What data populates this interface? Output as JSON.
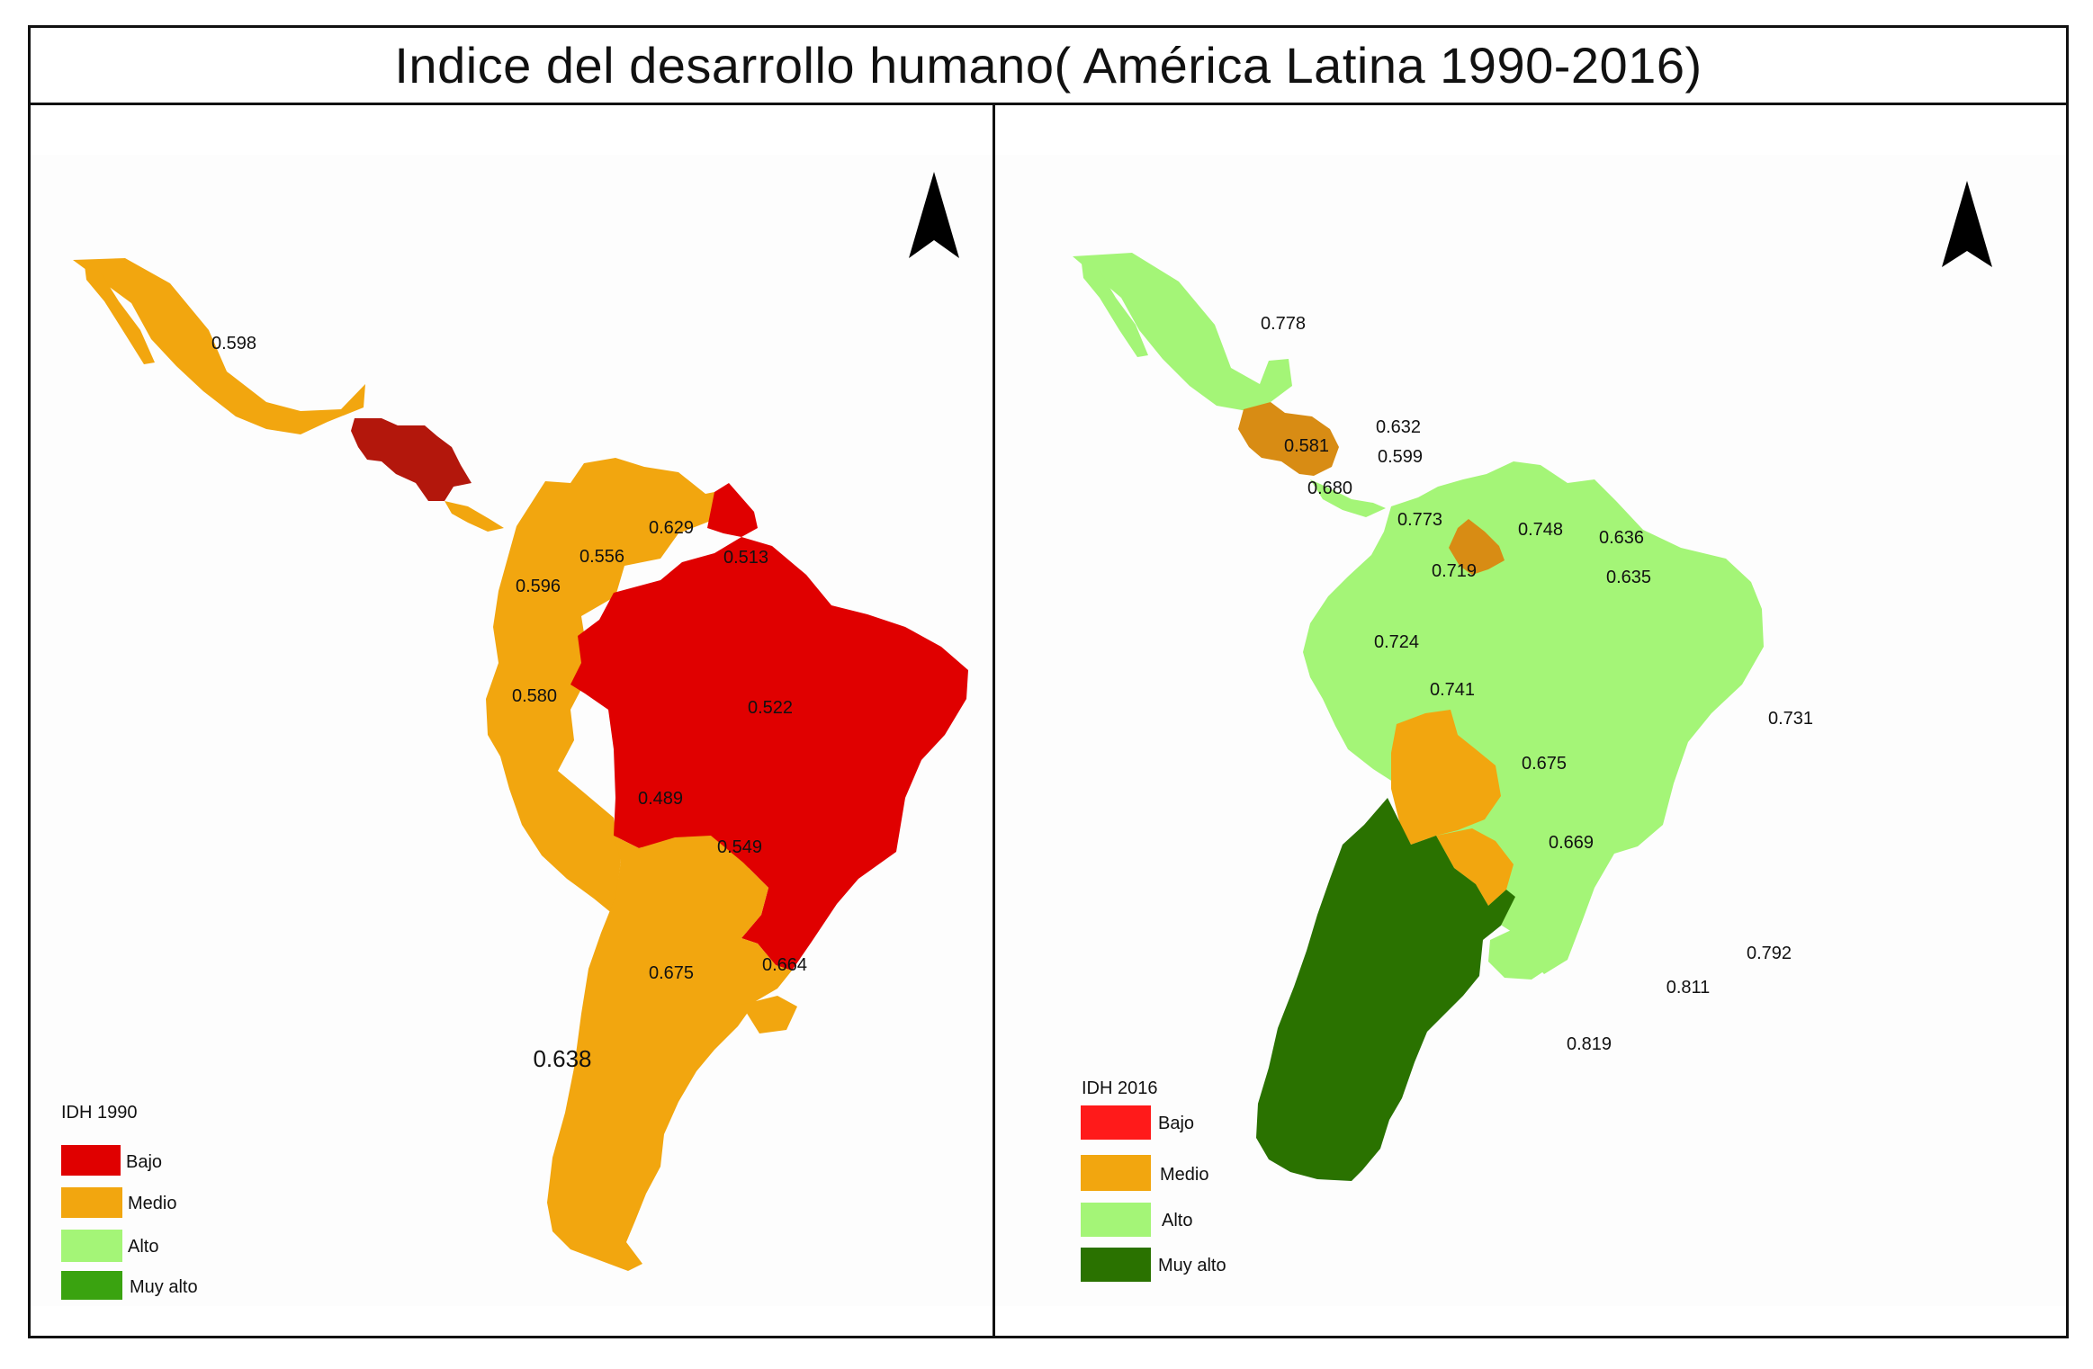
{
  "title": "Indice del desarrollo humano( América Latina 1990-2016)",
  "colors": {
    "bajo": "#e00000",
    "bajo_2016": "#ff1a1a",
    "medio": "#f2a60f",
    "alto": "#a4f577",
    "muy_alto_legend_1990": "#3aa310",
    "muy_alto": "#2a7200",
    "central_dark": "#b3170c",
    "medio_dark_2016": "#d88c14",
    "background": "#fdfdfd"
  },
  "icons": {
    "north_arrow": "north-arrow-icon"
  },
  "map_1990": {
    "legend": {
      "title": "IDH 1990",
      "items": [
        {
          "label": "Bajo",
          "color": "#e00000"
        },
        {
          "label": "Medio",
          "color": "#f2a60f"
        },
        {
          "label": "Alto",
          "color": "#a4f577"
        },
        {
          "label": "Muy alto",
          "color": "#3aa310"
        }
      ]
    },
    "values": {
      "mexico": "0.598",
      "venezuela": "0.629",
      "guyanas": "0.513",
      "colombia": "0.556",
      "ecuador": "0.596",
      "peru": "0.580",
      "brazil": "0.522",
      "bolivia": "0.489",
      "paraguay": "0.549",
      "argentina": "0.675",
      "uruguay": "0.664",
      "chile": "0.638"
    }
  },
  "map_2016": {
    "legend": {
      "title": "IDH 2016",
      "items": [
        {
          "label": "Bajo",
          "color": "#ff1a1a"
        },
        {
          "label": "Medio",
          "color": "#f2a60f"
        },
        {
          "label": "Alto",
          "color": "#a4f577"
        },
        {
          "label": "Muy alto",
          "color": "#2a7200"
        }
      ]
    },
    "values": {
      "mexico": "0.778",
      "guatemala": "0.581",
      "honduras": "0.632",
      "nicaragua": "0.599",
      "el_salvador": "0.680",
      "panama": "0.773",
      "venezuela": "0.748",
      "guyanas_north": "0.636",
      "guyanas_south": "0.635",
      "colombia": "0.719",
      "ecuador": "0.724",
      "peru": "0.741",
      "brazil": "0.731",
      "bolivia": "0.675",
      "paraguay": "0.669",
      "uruguay": "0.792",
      "argentina": "0.811",
      "chile": "0.819"
    }
  }
}
